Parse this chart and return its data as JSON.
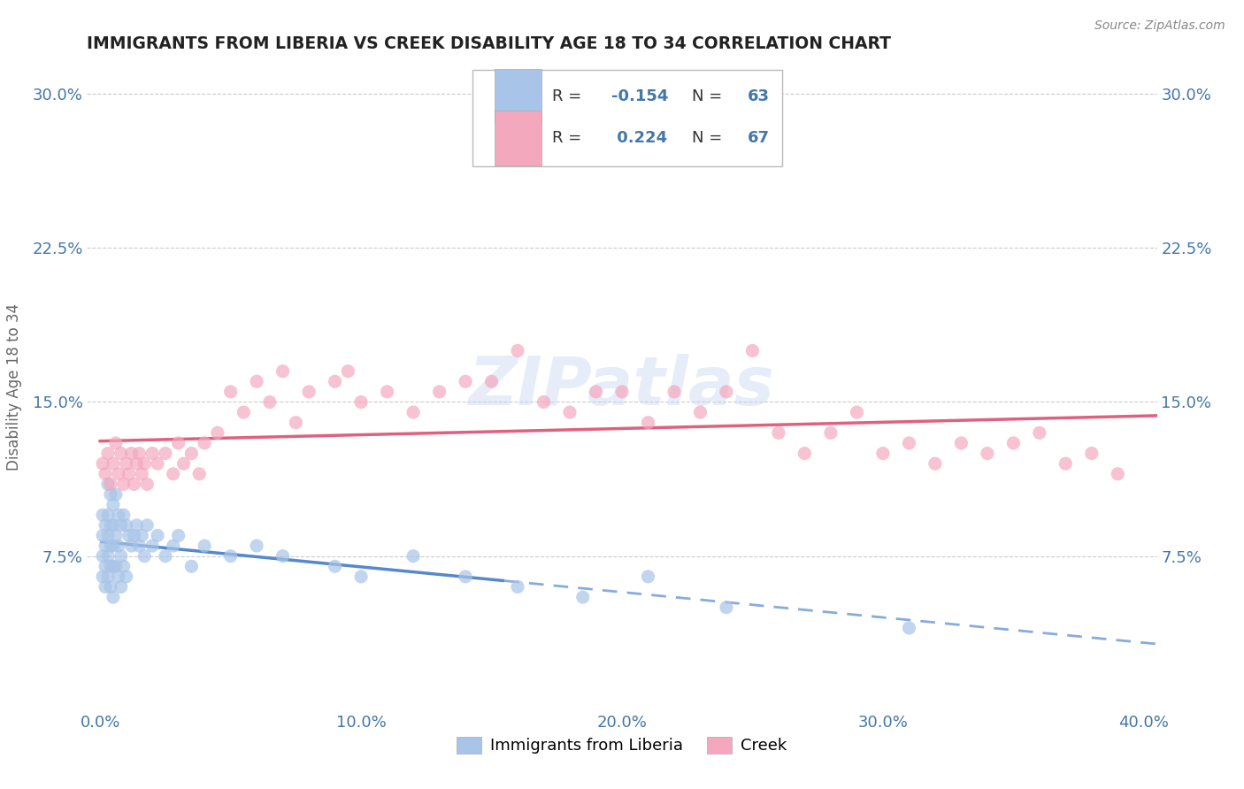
{
  "title": "IMMIGRANTS FROM LIBERIA VS CREEK DISABILITY AGE 18 TO 34 CORRELATION CHART",
  "source": "Source: ZipAtlas.com",
  "ylabel": "Disability Age 18 to 34",
  "xlim": [
    -0.005,
    0.405
  ],
  "ylim": [
    0.0,
    0.315
  ],
  "xticks": [
    0.0,
    0.1,
    0.2,
    0.3,
    0.4
  ],
  "xtick_labels": [
    "0.0%",
    "10.0%",
    "20.0%",
    "30.0%",
    "40.0%"
  ],
  "yticks": [
    0.075,
    0.15,
    0.225,
    0.3
  ],
  "ytick_labels": [
    "7.5%",
    "15.0%",
    "22.5%",
    "30.0%"
  ],
  "legend_labels": [
    "Immigrants from Liberia",
    "Creek"
  ],
  "r_liberia": -0.154,
  "n_liberia": 63,
  "r_creek": 0.224,
  "n_creek": 67,
  "color_liberia": "#a8c4e8",
  "color_creek": "#f4a8be",
  "line_color_liberia": "#5588cc",
  "line_color_creek": "#e06080",
  "background_color": "#ffffff",
  "grid_color": "#cccccc",
  "title_color": "#222222",
  "axis_label_color": "#4477aa",
  "watermark": "ZIPatlas",
  "liberia_x": [
    0.001,
    0.001,
    0.001,
    0.001,
    0.002,
    0.002,
    0.002,
    0.002,
    0.003,
    0.003,
    0.003,
    0.003,
    0.003,
    0.004,
    0.004,
    0.004,
    0.004,
    0.004,
    0.005,
    0.005,
    0.005,
    0.005,
    0.005,
    0.006,
    0.006,
    0.006,
    0.007,
    0.007,
    0.007,
    0.008,
    0.008,
    0.008,
    0.009,
    0.009,
    0.01,
    0.01,
    0.011,
    0.012,
    0.013,
    0.014,
    0.015,
    0.016,
    0.017,
    0.018,
    0.02,
    0.022,
    0.025,
    0.028,
    0.03,
    0.035,
    0.04,
    0.05,
    0.06,
    0.07,
    0.09,
    0.1,
    0.12,
    0.14,
    0.16,
    0.185,
    0.21,
    0.24,
    0.31
  ],
  "liberia_y": [
    0.095,
    0.085,
    0.075,
    0.065,
    0.09,
    0.08,
    0.07,
    0.06,
    0.11,
    0.095,
    0.085,
    0.075,
    0.065,
    0.105,
    0.09,
    0.08,
    0.07,
    0.06,
    0.1,
    0.09,
    0.08,
    0.07,
    0.055,
    0.105,
    0.085,
    0.07,
    0.095,
    0.08,
    0.065,
    0.09,
    0.075,
    0.06,
    0.095,
    0.07,
    0.09,
    0.065,
    0.085,
    0.08,
    0.085,
    0.09,
    0.08,
    0.085,
    0.075,
    0.09,
    0.08,
    0.085,
    0.075,
    0.08,
    0.085,
    0.07,
    0.08,
    0.075,
    0.08,
    0.075,
    0.07,
    0.065,
    0.075,
    0.065,
    0.06,
    0.055,
    0.065,
    0.05,
    0.04
  ],
  "creek_x": [
    0.001,
    0.002,
    0.003,
    0.004,
    0.005,
    0.006,
    0.007,
    0.008,
    0.009,
    0.01,
    0.011,
    0.012,
    0.013,
    0.014,
    0.015,
    0.016,
    0.017,
    0.018,
    0.02,
    0.022,
    0.025,
    0.028,
    0.03,
    0.032,
    0.035,
    0.038,
    0.04,
    0.045,
    0.05,
    0.055,
    0.06,
    0.065,
    0.07,
    0.075,
    0.08,
    0.09,
    0.095,
    0.1,
    0.11,
    0.12,
    0.13,
    0.14,
    0.15,
    0.16,
    0.17,
    0.18,
    0.19,
    0.2,
    0.21,
    0.22,
    0.23,
    0.24,
    0.25,
    0.26,
    0.27,
    0.28,
    0.29,
    0.3,
    0.31,
    0.32,
    0.33,
    0.34,
    0.35,
    0.36,
    0.37,
    0.38,
    0.39
  ],
  "creek_y": [
    0.12,
    0.115,
    0.125,
    0.11,
    0.12,
    0.13,
    0.115,
    0.125,
    0.11,
    0.12,
    0.115,
    0.125,
    0.11,
    0.12,
    0.125,
    0.115,
    0.12,
    0.11,
    0.125,
    0.12,
    0.125,
    0.115,
    0.13,
    0.12,
    0.125,
    0.115,
    0.13,
    0.135,
    0.155,
    0.145,
    0.16,
    0.15,
    0.165,
    0.14,
    0.155,
    0.16,
    0.165,
    0.15,
    0.155,
    0.145,
    0.155,
    0.16,
    0.16,
    0.175,
    0.15,
    0.145,
    0.155,
    0.155,
    0.14,
    0.155,
    0.145,
    0.155,
    0.175,
    0.135,
    0.125,
    0.135,
    0.145,
    0.125,
    0.13,
    0.12,
    0.13,
    0.125,
    0.13,
    0.135,
    0.12,
    0.125,
    0.115
  ]
}
